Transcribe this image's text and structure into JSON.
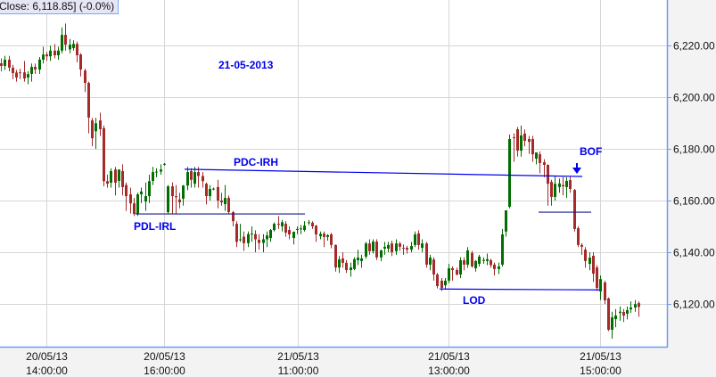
{
  "info_box": "Close: 6,118.85] (-0.0%)",
  "chart_data": {
    "type": "candlestick",
    "title": "",
    "ylim": [
      6105,
      6234
    ],
    "y_ticks": [
      "6,120.00",
      "6,140.00",
      "6,160.00",
      "6,180.00",
      "6,200.00",
      "6,220.00"
    ],
    "y_tick_values": [
      6120,
      6140,
      6160,
      6180,
      6200,
      6220
    ],
    "x_ticks": [
      {
        "date": "20/05/13",
        "time": "14:00:00"
      },
      {
        "date": "20/05/13",
        "time": "16:00:00"
      },
      {
        "date": "21/05/13",
        "time": "11:00:00"
      },
      {
        "date": "21/05/13",
        "time": "13:00:00"
      },
      {
        "date": "21/05/13",
        "time": "15:00:00"
      }
    ],
    "grid": true,
    "colors": {
      "up": "#006e00",
      "down": "#a52a2a",
      "annotation": "#0000ee",
      "axis": "#6f9cf0",
      "grid": "#d6d6d6"
    },
    "ohlc_order": [
      "open",
      "high",
      "low",
      "close"
    ],
    "candles": [
      [
        6213.1,
        6215,
        6210,
        6212.1
      ],
      [
        6212.1,
        6216,
        6210.5,
        6214.5
      ],
      [
        6214.5,
        6216,
        6210,
        6211.4
      ],
      [
        6211.4,
        6212.5,
        6207,
        6209.3
      ],
      [
        6209.5,
        6210.5,
        6206,
        6207.6
      ],
      [
        6209.6,
        6211,
        6207,
        6209.3
      ],
      [
        6209.6,
        6214,
        6206,
        6207.2
      ],
      [
        6207.6,
        6210,
        6205,
        6208.9
      ],
      [
        6209,
        6213,
        6206,
        6211.7
      ],
      [
        6211.7,
        6213,
        6209,
        6210.7
      ],
      [
        6210.7,
        6215.5,
        6209,
        6214.5
      ],
      [
        6214.5,
        6219.5,
        6213,
        6216.5
      ],
      [
        6216.5,
        6217.5,
        6214,
        6215.8
      ],
      [
        6215.8,
        6220,
        6214,
        6218
      ],
      [
        6218,
        6220.5,
        6215,
        6216.2
      ],
      [
        6216.2,
        6219.5,
        6214.5,
        6218
      ],
      [
        6218,
        6227,
        6217,
        6224.1
      ],
      [
        6224.1,
        6228.5,
        6218,
        6220.3
      ],
      [
        6218.5,
        6222.5,
        6217,
        6220.3
      ],
      [
        6219,
        6222,
        6218,
        6220.6
      ],
      [
        6220.6,
        6221.5,
        6213.5,
        6216.2
      ],
      [
        6216.5,
        6217,
        6208,
        6210.7
      ],
      [
        6210.3,
        6211,
        6202,
        6205.5
      ],
      [
        6205.5,
        6206,
        6186,
        6192.1
      ],
      [
        6191,
        6192,
        6181,
        6184.1
      ],
      [
        6186.8,
        6192,
        6180,
        6189.9
      ],
      [
        6191,
        6194,
        6185,
        6187.6
      ],
      [
        6188,
        6189,
        6165.5,
        6167.5
      ],
      [
        6167.5,
        6170,
        6165,
        6166.5
      ],
      [
        6166.9,
        6172.5,
        6165,
        6171.4
      ],
      [
        6172,
        6173,
        6162,
        6166.9
      ],
      [
        6167.6,
        6172,
        6165,
        6172
      ],
      [
        6171.4,
        6174,
        6162,
        6165.2
      ],
      [
        6166,
        6167,
        6156,
        6161.7
      ],
      [
        6162.4,
        6165,
        6155,
        6158.9
      ],
      [
        6158.9,
        6161,
        6154,
        6154.8
      ],
      [
        6154.8,
        6163,
        6154,
        6162.4
      ],
      [
        6162.4,
        6165,
        6159,
        6163.5
      ],
      [
        6159.6,
        6167,
        6156,
        6161.7
      ],
      [
        6161.7,
        6170,
        6159,
        6167.5
      ],
      [
        6167.6,
        6173,
        6166,
        6171
      ],
      [
        6171,
        6172.5,
        6169,
        6171.2
      ],
      [
        6171.2,
        6174,
        6170,
        6172
      ],
      [
        6174,
        6174.5,
        6173.5,
        6174.2
      ],
      [
        6155.5,
        6166,
        6155,
        6165.5
      ],
      [
        6165.5,
        6167,
        6155,
        6161.7
      ],
      [
        6161.7,
        6166,
        6155,
        6161.3
      ],
      [
        6160.4,
        6163,
        6157,
        6159.3
      ],
      [
        6160.7,
        6166,
        6158,
        6165.8
      ],
      [
        6165.8,
        6173,
        6164,
        6171
      ],
      [
        6171.4,
        6172.5,
        6165,
        6168
      ],
      [
        6166.5,
        6173,
        6165,
        6171
      ],
      [
        6171,
        6173,
        6165,
        6169.5
      ],
      [
        6169.5,
        6171,
        6165,
        6167.5
      ],
      [
        6166.5,
        6167,
        6158.5,
        6161.7
      ],
      [
        6161.7,
        6166,
        6160,
        6164.5
      ],
      [
        6164.5,
        6165,
        6164,
        6164.6
      ],
      [
        6165.2,
        6168,
        6157,
        6160
      ],
      [
        6160,
        6163,
        6158,
        6159.3
      ],
      [
        6158.6,
        6166,
        6156,
        6161
      ],
      [
        6161,
        6162,
        6155,
        6155.5
      ],
      [
        6155.5,
        6156,
        6150,
        6152
      ],
      [
        6151,
        6152,
        6142,
        6144
      ],
      [
        6144.7,
        6151,
        6144,
        6145
      ],
      [
        6146,
        6148,
        6140.5,
        6143.5
      ],
      [
        6143.5,
        6148,
        6142,
        6147
      ],
      [
        6147,
        6150,
        6144,
        6147.2
      ],
      [
        6147,
        6148.5,
        6140,
        6145
      ],
      [
        6144.8,
        6147,
        6141,
        6143.6
      ],
      [
        6143.6,
        6147,
        6140,
        6145
      ],
      [
        6145,
        6148,
        6142,
        6146.5
      ],
      [
        6145.5,
        6149,
        6144,
        6148.6
      ],
      [
        6148.6,
        6151.5,
        6148,
        6151
      ],
      [
        6151,
        6154,
        6149,
        6150.6
      ],
      [
        6150,
        6152.5,
        6148,
        6151.6
      ],
      [
        6151,
        6152,
        6146,
        6147.6
      ],
      [
        6148.6,
        6150,
        6145,
        6146.9
      ],
      [
        6145.5,
        6148,
        6143,
        6147.9
      ],
      [
        6148.8,
        6150,
        6147,
        6149
      ],
      [
        6149,
        6150.5,
        6147,
        6149.2
      ],
      [
        6148.6,
        6152,
        6148,
        6150.3
      ],
      [
        6151.4,
        6152.5,
        6150.5,
        6151.6
      ],
      [
        6151.4,
        6152,
        6149,
        6150
      ],
      [
        6150.3,
        6150.5,
        6144,
        6146.9
      ],
      [
        6146.2,
        6148,
        6145,
        6147.1
      ],
      [
        6147.2,
        6148,
        6142,
        6145.9
      ],
      [
        6145.9,
        6147,
        6144.5,
        6146.6
      ],
      [
        6146.9,
        6147.5,
        6141.5,
        6142.8
      ],
      [
        6142.8,
        6143,
        6132.5,
        6134.1
      ],
      [
        6134.1,
        6138.5,
        6132,
        6137.2
      ],
      [
        6137.6,
        6140,
        6134,
        6135.9
      ],
      [
        6135.9,
        6137,
        6132,
        6133.1
      ],
      [
        6133.1,
        6136,
        6130.5,
        6134.1
      ],
      [
        6133.5,
        6138,
        6133,
        6137.3
      ],
      [
        6136.9,
        6141,
        6135,
        6137.9
      ],
      [
        6136.6,
        6139,
        6134,
        6137.6
      ],
      [
        6138.3,
        6144,
        6137.5,
        6143.4
      ],
      [
        6143.4,
        6145,
        6139,
        6140.4
      ],
      [
        6140.4,
        6145,
        6139.5,
        6144.1
      ],
      [
        6144.1,
        6145,
        6137,
        6138
      ],
      [
        6138,
        6141,
        6136.5,
        6140.7
      ],
      [
        6141.4,
        6144,
        6139,
        6142.1
      ],
      [
        6141.4,
        6144,
        6140,
        6142.8
      ],
      [
        6143.4,
        6144.5,
        6138.5,
        6140
      ],
      [
        6140.4,
        6145,
        6139,
        6143.4
      ],
      [
        6143.4,
        6144,
        6140.5,
        6142.1
      ],
      [
        6141.7,
        6143,
        6139,
        6141.4
      ],
      [
        6141.7,
        6142.5,
        6139.5,
        6141
      ],
      [
        6141,
        6144,
        6140,
        6142.4
      ],
      [
        6142.8,
        6148,
        6142,
        6146.9
      ],
      [
        6147.3,
        6148.5,
        6141,
        6142.8
      ],
      [
        6141.7,
        6145,
        6140,
        6143.4
      ],
      [
        6143.4,
        6144,
        6134,
        6135.2
      ],
      [
        6135.2,
        6139,
        6133,
        6137.9
      ],
      [
        6137.2,
        6138,
        6129,
        6131.4
      ],
      [
        6131.4,
        6132,
        6126,
        6126.9
      ],
      [
        6129,
        6130,
        6125,
        6126.2
      ],
      [
        6127.2,
        6130,
        6125.5,
        6129
      ],
      [
        6129,
        6135.5,
        6128,
        6133.8
      ],
      [
        6133.8,
        6134.5,
        6129,
        6133.1
      ],
      [
        6133.1,
        6134,
        6131,
        6131.4
      ],
      [
        6131.4,
        6138,
        6130,
        6136.9
      ],
      [
        6136.9,
        6138,
        6133,
        6135.2
      ],
      [
        6135.2,
        6142,
        6134,
        6140.7
      ],
      [
        6139.7,
        6140.5,
        6134,
        6134.5
      ],
      [
        6133.8,
        6137,
        6132.5,
        6136.6
      ],
      [
        6135.5,
        6139,
        6134.5,
        6138.3
      ],
      [
        6136.9,
        6138,
        6135.5,
        6137
      ],
      [
        6136.6,
        6139.5,
        6135,
        6137.3
      ],
      [
        6136.9,
        6137.5,
        6134,
        6135
      ],
      [
        6135.2,
        6136,
        6131,
        6133.5
      ],
      [
        6133.5,
        6136,
        6131.5,
        6134.5
      ],
      [
        6135.2,
        6149,
        6134.5,
        6146.9
      ],
      [
        6148,
        6155,
        6146,
        6156.2
      ],
      [
        6157.6,
        6185.5,
        6157,
        6183.8
      ],
      [
        6184.5,
        6186,
        6175,
        6184.4
      ],
      [
        6187.6,
        6188.5,
        6177,
        6179.3
      ],
      [
        6179.3,
        6189,
        6177,
        6185.2
      ],
      [
        6185.9,
        6187.5,
        6181,
        6183.1
      ],
      [
        6183.8,
        6185,
        6178,
        6182.7
      ],
      [
        6183.8,
        6185,
        6175,
        6177.9
      ],
      [
        6176.2,
        6178.5,
        6174,
        6178.6
      ],
      [
        6177.9,
        6179,
        6170.5,
        6174.5
      ],
      [
        6174.8,
        6176,
        6169,
        6173.8
      ],
      [
        6173.8,
        6174,
        6158,
        6166.5
      ],
      [
        6167.2,
        6168,
        6158,
        6161.4
      ],
      [
        6161.4,
        6169.5,
        6160,
        6166.5
      ],
      [
        6165.2,
        6168.5,
        6163,
        6166.6
      ],
      [
        6166,
        6169,
        6162,
        6165.5
      ],
      [
        6165.2,
        6169,
        6161,
        6167.6
      ],
      [
        6167.9,
        6169.5,
        6163,
        6164.5
      ],
      [
        6164.1,
        6164.5,
        6148,
        6149
      ],
      [
        6149.3,
        6150,
        6142,
        6142.8
      ],
      [
        6142.8,
        6143.5,
        6139,
        6142.1
      ],
      [
        6141,
        6142,
        6134,
        6136.6
      ],
      [
        6135.5,
        6140,
        6133,
        6137.9
      ],
      [
        6138.6,
        6140,
        6128.5,
        6131.7
      ],
      [
        6134.1,
        6135,
        6125,
        6126.2
      ],
      [
        6124.8,
        6131,
        6121.5,
        6129.6
      ],
      [
        6128.3,
        6129,
        6120,
        6121.4
      ],
      [
        6122.1,
        6122.5,
        6109.5,
        6110
      ],
      [
        6110,
        6117,
        6106.5,
        6114.8
      ],
      [
        6114.1,
        6118,
        6111,
        6115.5
      ],
      [
        6116.5,
        6119,
        6113.5,
        6117
      ],
      [
        6116.9,
        6118,
        6113,
        6115.5
      ],
      [
        6116.2,
        6119,
        6114,
        6117.6
      ],
      [
        6117.9,
        6121,
        6116.5,
        6118.6
      ],
      [
        6118.6,
        6121.5,
        6117,
        6119.9
      ],
      [
        6120.3,
        6121,
        6115,
        6118.85
      ]
    ],
    "annotations": {
      "date_label": "21-05-2013",
      "pdc_irh": {
        "label": "PDC-IRH",
        "price_start": 6172.1,
        "price_end": 6169.3
      },
      "pdl_irl": {
        "label": "PDL-IRL",
        "price": 6154.8
      },
      "lod": {
        "label": "LOD",
        "price": 6125.6
      },
      "bof": {
        "label": "BOF",
        "level_price": 6155.5
      }
    }
  }
}
